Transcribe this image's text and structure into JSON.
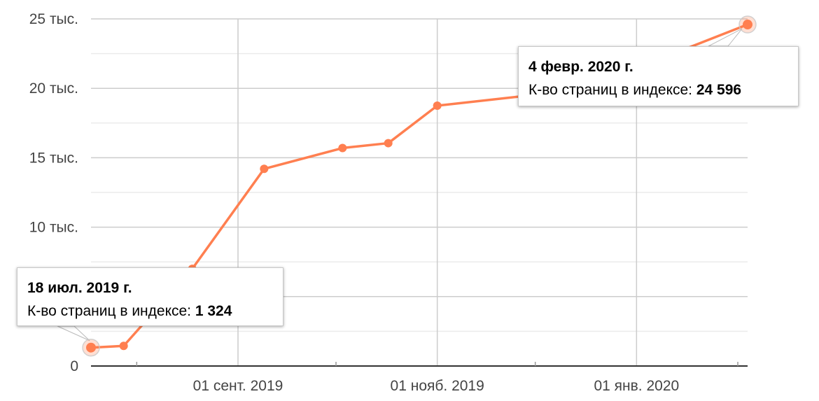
{
  "chart_data": {
    "type": "line",
    "x_dates": [
      "2019-07-18",
      "2019-07-28",
      "2019-08-18",
      "2019-09-09",
      "2019-10-03",
      "2019-10-17",
      "2019-11-01",
      "2019-12-15",
      "2020-02-04"
    ],
    "series": [
      {
        "values": [
          1324,
          1450,
          7000,
          14200,
          15700,
          16050,
          18750,
          19900,
          24596
        ]
      }
    ],
    "y_tick_labels": [
      "0",
      "10 тыс.",
      "15 тыс.",
      "20 тыс.",
      "25 тыс."
    ],
    "y_tick_values": [
      0,
      10000,
      15000,
      20000,
      25000
    ],
    "x_tick_labels": [
      "01 сент. 2019",
      "01 нояб. 2019",
      "01 янв. 2020"
    ],
    "x_tick_dates": [
      "2019-09-01",
      "2019-11-01",
      "2020-01-01"
    ],
    "ylim": [
      0,
      25000
    ],
    "x_range": [
      "2019-07-18",
      "2020-02-04"
    ],
    "grid": true,
    "line_color": "#ff7f50"
  },
  "tooltips": [
    {
      "date": "18 июл. 2019 г.",
      "label": "К-во страниц в индексе:",
      "value": "1 324"
    },
    {
      "date": "4 февр. 2020 г.",
      "label": "К-во страниц в индексе:",
      "value": "24 596"
    }
  ]
}
